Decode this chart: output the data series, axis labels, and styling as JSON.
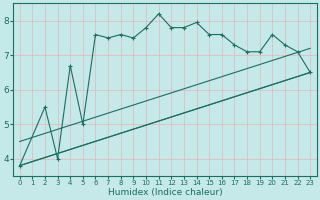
{
  "xlabel": "Humidex (Indice chaleur)",
  "background_color": "#c5e8e8",
  "grid_color": "#ddbfbf",
  "line_color": "#1a6e62",
  "xlim": [
    -0.5,
    23.5
  ],
  "ylim": [
    3.5,
    8.5
  ],
  "yticks": [
    4,
    5,
    6,
    7,
    8
  ],
  "xticks": [
    0,
    1,
    2,
    3,
    4,
    5,
    6,
    7,
    8,
    9,
    10,
    11,
    12,
    13,
    14,
    15,
    16,
    17,
    18,
    19,
    20,
    21,
    22,
    23
  ],
  "series1": [
    [
      0,
      3.8
    ],
    [
      2,
      5.5
    ],
    [
      3,
      4.0
    ],
    [
      4,
      6.7
    ],
    [
      5,
      5.0
    ],
    [
      6,
      7.6
    ],
    [
      7,
      7.5
    ],
    [
      8,
      7.6
    ],
    [
      9,
      7.5
    ],
    [
      10,
      7.8
    ],
    [
      11,
      8.2
    ],
    [
      12,
      7.8
    ],
    [
      13,
      7.8
    ],
    [
      14,
      7.95
    ],
    [
      15,
      7.6
    ],
    [
      16,
      7.6
    ],
    [
      17,
      7.3
    ],
    [
      18,
      7.1
    ],
    [
      19,
      7.1
    ],
    [
      20,
      7.6
    ],
    [
      21,
      7.3
    ],
    [
      22,
      7.1
    ],
    [
      23,
      6.5
    ]
  ],
  "line2": [
    [
      0,
      3.8
    ],
    [
      23,
      6.5
    ]
  ],
  "line3": [
    [
      0,
      3.8
    ],
    [
      23,
      6.5
    ]
  ],
  "line4": [
    [
      0,
      4.5
    ],
    [
      23,
      7.2
    ]
  ],
  "figwidth": 3.2,
  "figheight": 2.0,
  "dpi": 100
}
